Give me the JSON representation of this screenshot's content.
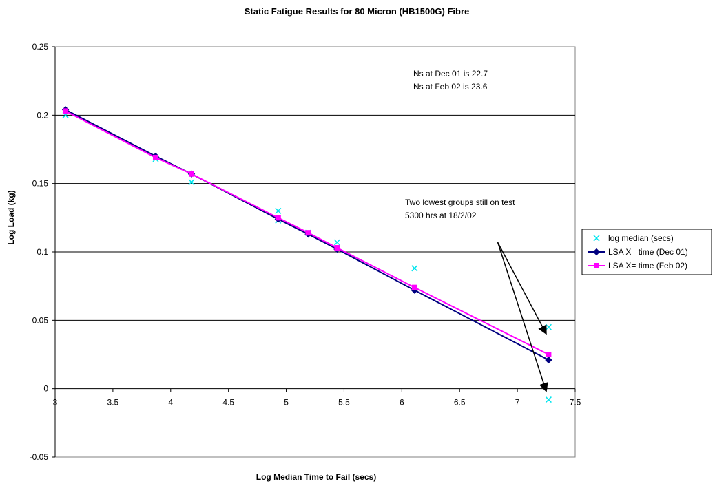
{
  "chart_data": {
    "type": "scatter",
    "title": "Static Fatigue Results for 80 Micron (HB1500G) Fibre",
    "xlabel": "Log Median Time to Fail (secs)",
    "ylabel": "Log Load (kg)",
    "xlim": [
      3,
      7.5
    ],
    "ylim": [
      -0.05,
      0.25
    ],
    "x_ticks": [
      3,
      3.5,
      4,
      4.5,
      5,
      5.5,
      6,
      6.5,
      7,
      7.5
    ],
    "x_tick_labels": [
      "3",
      "3.5",
      "4",
      "4.5",
      "5",
      "5.5",
      "6",
      "6.5",
      "7",
      "7.5"
    ],
    "y_ticks": [
      -0.05,
      0,
      0.05,
      0.1,
      0.15,
      0.2,
      0.25
    ],
    "y_tick_labels": [
      "-0.05",
      "0",
      "0.05",
      "0.1",
      "0.15",
      "0.2",
      "0.25"
    ],
    "grid": "horizontal",
    "legend_position": "right",
    "series": [
      {
        "name": "log median (secs)",
        "kind": "scatter",
        "marker": "x",
        "color": "#00e5ee",
        "points": [
          [
            3.09,
            0.2
          ],
          [
            3.87,
            0.168
          ],
          [
            4.18,
            0.151
          ],
          [
            4.93,
            0.13
          ],
          [
            4.93,
            0.123
          ],
          [
            5.19,
            0.114
          ],
          [
            5.44,
            0.107
          ],
          [
            6.11,
            0.088
          ],
          [
            7.27,
            0.045
          ],
          [
            7.27,
            -0.008
          ]
        ]
      },
      {
        "name": "LSA X= time (Dec 01)",
        "kind": "line",
        "marker": "diamond",
        "color": "#000080",
        "points": [
          [
            3.09,
            0.204
          ],
          [
            3.87,
            0.17
          ],
          [
            4.18,
            0.157
          ],
          [
            4.93,
            0.124
          ],
          [
            5.19,
            0.113
          ],
          [
            5.44,
            0.102
          ],
          [
            6.11,
            0.072
          ],
          [
            7.27,
            0.021
          ]
        ]
      },
      {
        "name": "LSA X= time (Feb 02)",
        "kind": "line",
        "marker": "square",
        "color": "#ff00ff",
        "points": [
          [
            3.09,
            0.203
          ],
          [
            3.87,
            0.169
          ],
          [
            4.18,
            0.157
          ],
          [
            4.93,
            0.125
          ],
          [
            5.19,
            0.114
          ],
          [
            5.44,
            0.103
          ],
          [
            6.11,
            0.074
          ],
          [
            7.27,
            0.025
          ]
        ]
      }
    ],
    "annotations": [
      {
        "id": "ns",
        "lines": [
          "Ns at Dec 01 is 22.7",
          "Ns at Feb 02 is 23.6"
        ]
      },
      {
        "id": "test",
        "lines": [
          "Two lowest groups still on test",
          "5300 hrs at 18/2/02"
        ]
      }
    ],
    "arrows": [
      {
        "from": [
          6.83,
          0.107
        ],
        "to": [
          7.25,
          0.04
        ]
      },
      {
        "from": [
          6.83,
          0.107
        ],
        "to": [
          7.25,
          -0.002
        ]
      }
    ]
  }
}
